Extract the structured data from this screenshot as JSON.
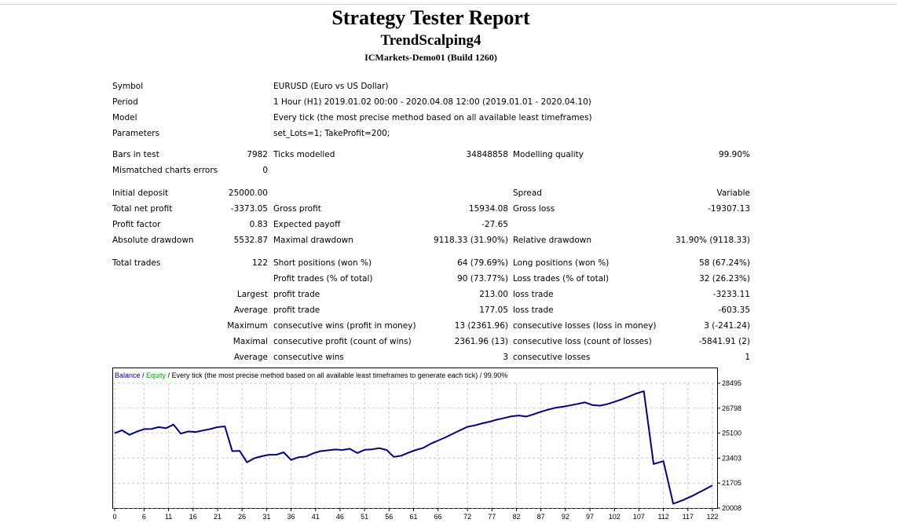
{
  "report": {
    "title": "Strategy Tester Report",
    "expert": "TrendScalping4",
    "server": "ICMarkets-Demo01 (Build 1260)"
  },
  "summary": {
    "symbol_label": "Symbol",
    "symbol_value": "EURUSD (Euro vs US Dollar)",
    "period_label": "Period",
    "period_value": "1 Hour (H1) 2019.01.02 00:00 - 2020.04.08 12:00 (2019.01.01 - 2020.04.10)",
    "model_label": "Model",
    "model_value": "Every tick (the most precise method based on all available least timeframes)",
    "parameters_label": "Parameters",
    "parameters_value": "set_Lots=1; TakeProfit=200;",
    "bars_label": "Bars in test",
    "bars_value": "7982",
    "ticks_label": "Ticks modelled",
    "ticks_value": "34848858",
    "quality_label": "Modelling quality",
    "quality_value": "99.90%",
    "mismatched_label": "Mismatched charts errors",
    "mismatched_value": "0",
    "deposit_label": "Initial deposit",
    "deposit_value": "25000.00",
    "spread_label": "Spread",
    "spread_value": "Variable",
    "netprofit_label": "Total net profit",
    "netprofit_value": "-3373.05",
    "grossprofit_label": "Gross profit",
    "grossprofit_value": "15934.08",
    "grossloss_label": "Gross loss",
    "grossloss_value": "-19307.13",
    "pf_label": "Profit factor",
    "pf_value": "0.83",
    "payoff_label": "Expected payoff",
    "payoff_value": "-27.65",
    "absdd_label": "Absolute drawdown",
    "absdd_value": "5532.87",
    "maxdd_label": "Maximal drawdown",
    "maxdd_value": "9118.33 (31.90%)",
    "reldd_label": "Relative drawdown",
    "reldd_value": "31.90% (9118.33)",
    "trades_label": "Total trades",
    "trades_value": "122",
    "short_label": "Short positions (won %)",
    "short_value": "64 (79.69%)",
    "long_label": "Long positions (won %)",
    "long_value": "58 (67.24%)",
    "profittrades_label": "Profit trades (% of total)",
    "profittrades_value": "90 (73.77%)",
    "losstrades_label": "Loss trades (% of total)",
    "losstrades_value": "32 (26.23%)",
    "largest_label": "Largest",
    "largest_profit_label": "profit trade",
    "largest_profit_value": "213.00",
    "largest_loss_label": "loss trade",
    "largest_loss_value": "-3233.11",
    "average_label": "Average",
    "average_profit_label": "profit trade",
    "average_profit_value": "177.05",
    "average_loss_label": "loss trade",
    "average_loss_value": "-603.35",
    "maximum_label": "Maximum",
    "maxwins_label": "consecutive wins (profit in money)",
    "maxwins_value": "13 (2361.96)",
    "maxlosses_label": "consecutive losses (loss in money)",
    "maxlosses_value": "3 (-241.24)",
    "maximal_label": "Maximal",
    "maxprofit_label": "consecutive profit (count of wins)",
    "maxprofit_value": "2361.96 (13)",
    "maxloss_label": "consecutive loss (count of losses)",
    "maxloss_value": "-5841.91 (2)",
    "avgcons_label": "Average",
    "avgwins_label": "consecutive wins",
    "avgwins_value": "3",
    "avglosses_label": "consecutive losses",
    "avglosses_value": "1"
  },
  "chart_data": {
    "type": "line",
    "legend": {
      "balance": "Balance",
      "sep1": " / ",
      "equity": "Equity",
      "rest": " / Every tick (the most precise method based on all available least timeframes to generate each tick) / 99.90%"
    },
    "colors": {
      "balance": "#00008b",
      "equity": "#00a000",
      "grid": "#c8c8c8"
    },
    "x_ticks": [
      "0",
      "6",
      "11",
      "16",
      "21",
      "26",
      "31",
      "36",
      "41",
      "46",
      "51",
      "56",
      "61",
      "66",
      "72",
      "77",
      "82",
      "87",
      "92",
      "97",
      "102",
      "107",
      "112",
      "117",
      "122"
    ],
    "y_ticks": [
      "28495",
      "26798",
      "25100",
      "23403",
      "21705",
      "20008"
    ],
    "ylim": [
      20008,
      28495
    ],
    "xlim": [
      0,
      122
    ],
    "series": [
      {
        "name": "Balance",
        "x": [
          0,
          1.5,
          3,
          4.5,
          6,
          7.5,
          9,
          10.5,
          12,
          13.5,
          15,
          16.5,
          18,
          19.5,
          21,
          22.5,
          24,
          25.5,
          27,
          28.5,
          30,
          31.5,
          33,
          34.5,
          36,
          37.5,
          39,
          40.5,
          42,
          43.5,
          45,
          46.5,
          48,
          49.5,
          51,
          52.5,
          54,
          55.5,
          57,
          58.5,
          60,
          61.5,
          63,
          64.5,
          66,
          67.5,
          69,
          70.5,
          72,
          73.5,
          75,
          76.5,
          78,
          79.5,
          81,
          82.5,
          84,
          85.5,
          87,
          88.5,
          90,
          91.5,
          93,
          94.5,
          96,
          97.5,
          99,
          100.5,
          102,
          103.5,
          105,
          106.5,
          108,
          110,
          112,
          114,
          116,
          118,
          120,
          122
        ],
        "values": [
          25100,
          25300,
          24990,
          25200,
          25380,
          25390,
          25510,
          25440,
          25680,
          25070,
          25220,
          25180,
          25280,
          25380,
          25510,
          25560,
          23880,
          23900,
          23120,
          23400,
          23530,
          23630,
          23640,
          23800,
          23280,
          23460,
          23510,
          23730,
          23880,
          23930,
          23990,
          23960,
          24040,
          23750,
          23970,
          24000,
          24080,
          23960,
          23490,
          23570,
          23780,
          23960,
          24100,
          24380,
          24600,
          24810,
          25060,
          25300,
          25530,
          25630,
          25770,
          25880,
          26020,
          26130,
          26250,
          26300,
          26230,
          26380,
          26560,
          26700,
          26830,
          26900,
          26990,
          27090,
          27190,
          27010,
          26970,
          27070,
          27230,
          27400,
          27600,
          27800,
          27950,
          23000,
          23200,
          20300,
          20550,
          20850,
          21200,
          21550
        ]
      }
    ]
  }
}
